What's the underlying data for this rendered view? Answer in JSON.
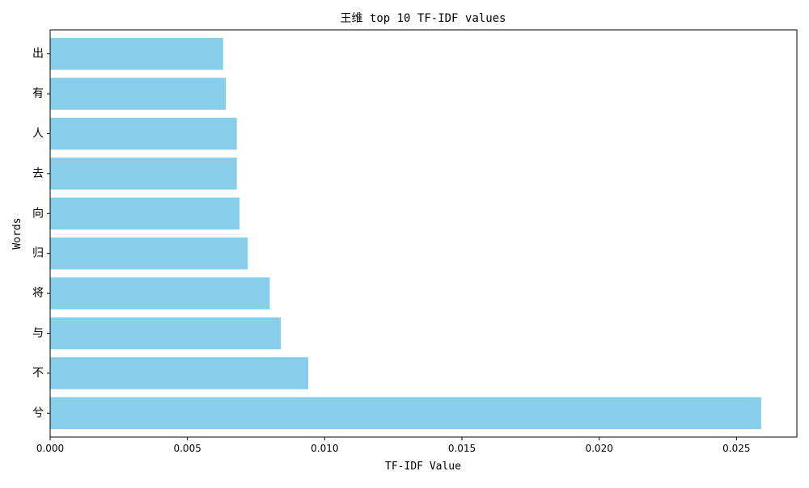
{
  "chart_data": {
    "type": "bar",
    "orientation": "horizontal",
    "title": "王维 top 10 TF-IDF values",
    "xlabel": "TF-IDF Value",
    "ylabel": "Words",
    "categories": [
      "兮",
      "不",
      "与",
      "将",
      "归",
      "向",
      "去",
      "人",
      "有",
      "出"
    ],
    "values": [
      0.0259,
      0.0094,
      0.0084,
      0.008,
      0.0072,
      0.0069,
      0.0068,
      0.0068,
      0.0064,
      0.0063
    ],
    "xlim": [
      0,
      0.0272
    ],
    "xticks": [
      0,
      0.005,
      0.01,
      0.015,
      0.02,
      0.025
    ],
    "xtick_labels": [
      "0.000",
      "0.005",
      "0.010",
      "0.015",
      "0.020",
      "0.025"
    ],
    "bar_color": "#87ceeb",
    "grid": false,
    "legend": "none"
  }
}
